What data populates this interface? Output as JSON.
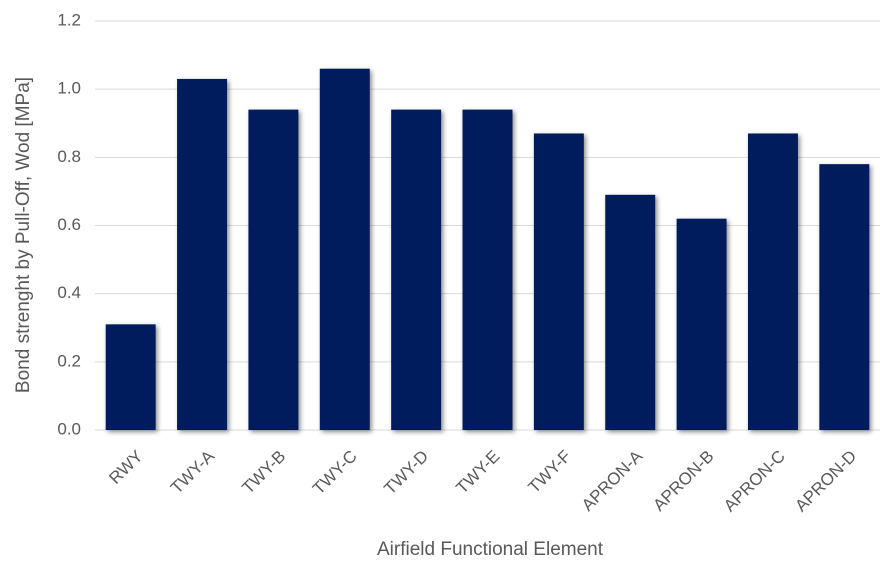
{
  "chart_data": {
    "type": "bar",
    "x_label": "Airfield Functional Element",
    "y_label": "Bond strenght by Pull-Off, Wod [MPa]",
    "categories": [
      "RWY",
      "TWY-A",
      "TWY-B",
      "TWY-C",
      "TWY-D",
      "TWY-E",
      "TWY-F",
      "APRON-A",
      "APRON-B",
      "APRON-C",
      "APRON-D"
    ],
    "values": [
      0.31,
      1.03,
      0.94,
      1.06,
      0.94,
      0.94,
      0.87,
      0.69,
      0.62,
      0.87,
      0.78
    ],
    "color": "#061a5c",
    "ylim": [
      0,
      1.2
    ],
    "yticks": [
      {
        "value": 0,
        "label": "0.0"
      },
      0.2,
      0.4,
      0.6,
      0.8,
      {
        "value": 1,
        "label": "1.0"
      },
      1.2
    ],
    "grid": true
  }
}
